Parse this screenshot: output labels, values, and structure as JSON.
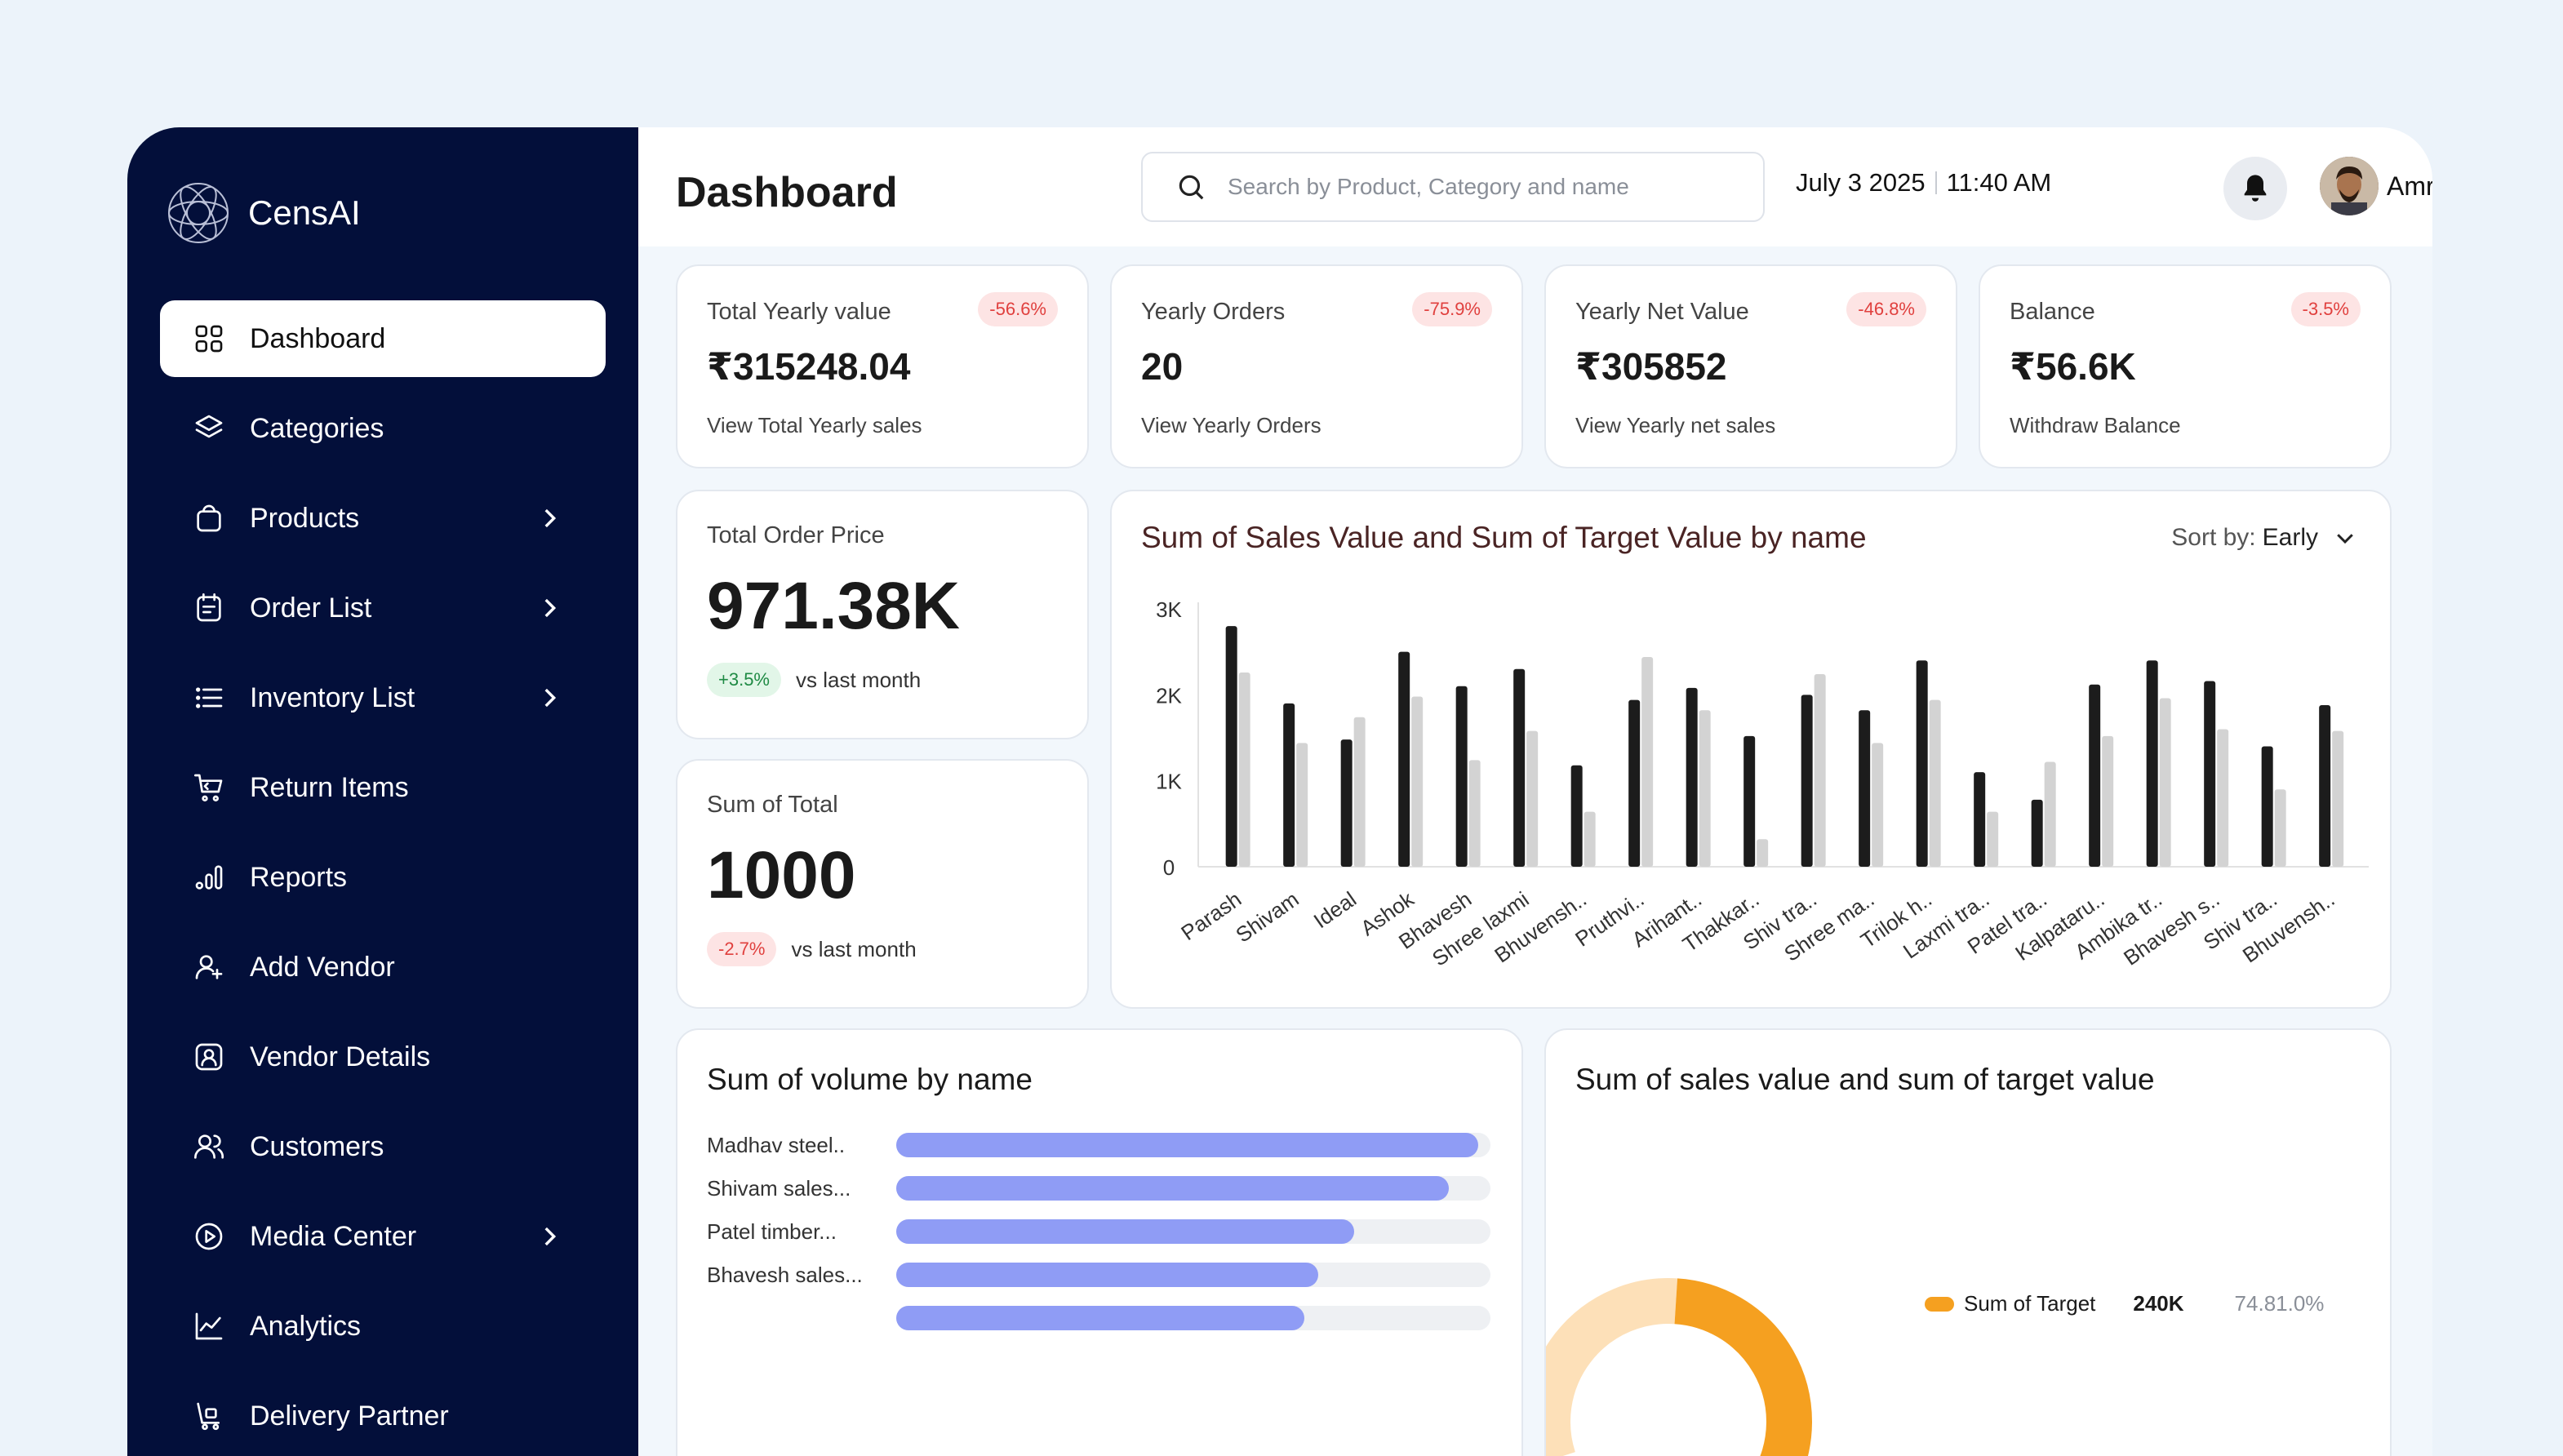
{
  "brand": {
    "name": "CensAI"
  },
  "sidebar": {
    "items": [
      {
        "label": "Dashboard",
        "icon": "grid-icon",
        "active": true,
        "has_submenu": false
      },
      {
        "label": "Categories",
        "icon": "layers-icon",
        "active": false,
        "has_submenu": false
      },
      {
        "label": "Products",
        "icon": "bag-icon",
        "active": false,
        "has_submenu": true
      },
      {
        "label": "Order List",
        "icon": "calendar-list-icon",
        "active": false,
        "has_submenu": true
      },
      {
        "label": "Inventory List",
        "icon": "list-icon",
        "active": false,
        "has_submenu": true
      },
      {
        "label": "Return Items",
        "icon": "cart-return-icon",
        "active": false,
        "has_submenu": false
      },
      {
        "label": "Reports",
        "icon": "bar-chart-icon",
        "active": false,
        "has_submenu": false
      },
      {
        "label": "Add Vendor",
        "icon": "user-plus-icon",
        "active": false,
        "has_submenu": false
      },
      {
        "label": "Vendor Details",
        "icon": "user-card-icon",
        "active": false,
        "has_submenu": false
      },
      {
        "label": "Customers",
        "icon": "users-icon",
        "active": false,
        "has_submenu": false
      },
      {
        "label": "Media Center",
        "icon": "play-circle-icon",
        "active": false,
        "has_submenu": true
      },
      {
        "label": "Analytics",
        "icon": "line-chart-icon",
        "active": false,
        "has_submenu": false
      },
      {
        "label": "Delivery Partner",
        "icon": "trolley-icon",
        "active": false,
        "has_submenu": false
      }
    ]
  },
  "header": {
    "search_placeholder": "Search by Product, Category and name",
    "date": "July 3 2025",
    "time": "11:40 AM",
    "user_name": "Amrendra"
  },
  "page": {
    "title": "Dashboard"
  },
  "kpis": [
    {
      "label": "Total Yearly value",
      "value": "₹315248.04",
      "change": "-56.6%",
      "sub": "View Total Yearly sales"
    },
    {
      "label": "Yearly Orders",
      "value": "20",
      "change": "-75.9%",
      "sub": "View Yearly Orders"
    },
    {
      "label": "Yearly Net Value",
      "value": "₹305852",
      "change": "-46.8%",
      "sub": "View Yearly net sales"
    },
    {
      "label": "Balance",
      "value": "₹56.6K",
      "change": "-3.5%",
      "sub": "Withdraw Balance"
    }
  ],
  "total_order": {
    "label": "Total Order Price",
    "value": "971.38K",
    "change": "+3.5%",
    "compare": "vs last month"
  },
  "sum_total": {
    "label": "Sum of Total",
    "value": "1000",
    "change": "-2.7%",
    "compare": "vs last month"
  },
  "sort": {
    "label": "Sort by:",
    "value": "Early"
  },
  "chart_data": [
    {
      "type": "bar",
      "title": "Sum of Sales Value and Sum of Target Value by name",
      "categories": [
        "Parash",
        "Shivam",
        "Ideal",
        "Ashok",
        "Bhavesh",
        "Shree laxmi",
        "Bhuvensh..",
        "Pruthvi..",
        "Arihant..",
        "Thakkar..",
        "Shiv tra..",
        "Shree ma..",
        "Trilok h..",
        "Laxmi tra..",
        "Patel tra..",
        "Kalpataru..",
        "Ambika tr..",
        "Bhavesh s..",
        "Shiv tra..",
        "Bhuvensh.."
      ],
      "series": [
        {
          "values": [
            2800,
            1900,
            1480,
            2500,
            2100,
            2300,
            1180,
            1940,
            2080,
            1520,
            2000,
            1820,
            2400,
            1100,
            780,
            2120,
            2400,
            2160,
            1400,
            1880
          ]
        },
        {
          "values": [
            2260,
            1440,
            1740,
            1980,
            1240,
            1580,
            640,
            2440,
            1820,
            320,
            2240,
            1440,
            1940,
            640,
            1220,
            1520,
            1960,
            1600,
            900,
            1580
          ]
        }
      ],
      "colors": [
        "#1c1c1c",
        "#d3d3d3"
      ],
      "ylim": [
        0,
        3000
      ],
      "yticks": [
        "0",
        "1K",
        "2K",
        "3K"
      ]
    },
    {
      "type": "bar",
      "title": "Sum of volume by name",
      "orientation": "horizontal",
      "categories": [
        "Madhav steel..",
        "Shivam sales...",
        "Patel timber...",
        "Bhavesh sales..."
      ],
      "values": [
        0.98,
        0.93,
        0.77,
        0.71
      ],
      "color": "#8f9cf5"
    },
    {
      "type": "pie",
      "title": "Sum of sales value and sum of target value",
      "legend": [
        {
          "name": "Sum of Target",
          "value": "240K",
          "percent": "74.81.0%"
        }
      ],
      "colors": [
        "#f5a020",
        "#fde0b8"
      ]
    }
  ]
}
